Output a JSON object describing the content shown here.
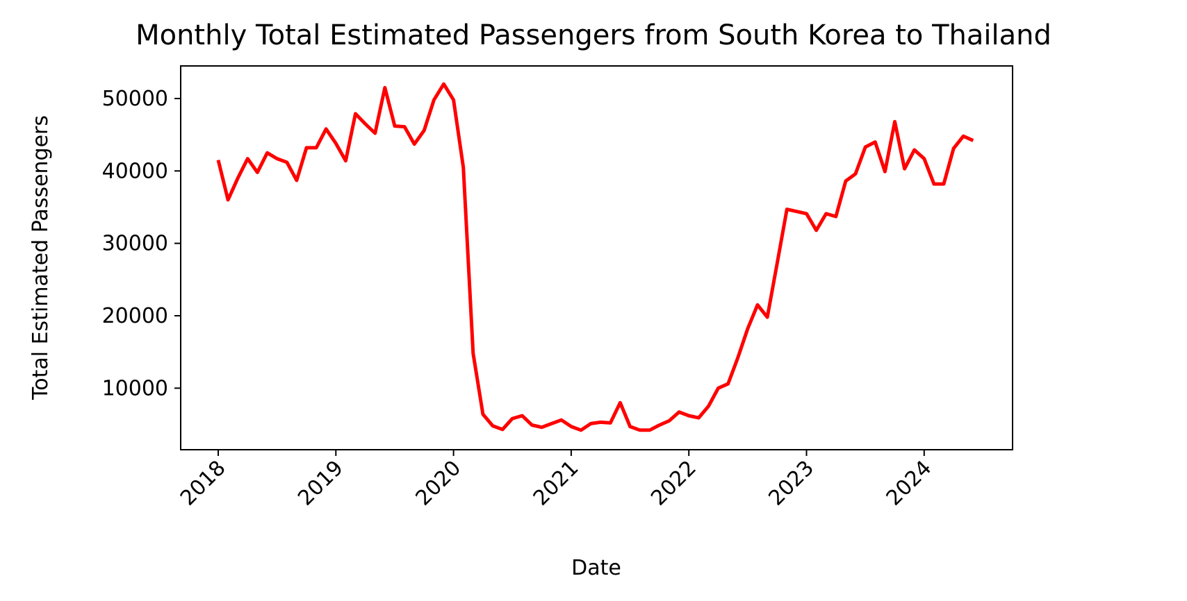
{
  "chart_data": {
    "type": "line",
    "title": "Monthly Total Estimated Passengers from South Korea to Thailand",
    "xlabel": "Date",
    "ylabel": "Total Estimated Passengers",
    "x_ticks": [
      "2018",
      "2019",
      "2020",
      "2021",
      "2022",
      "2023",
      "2024"
    ],
    "y_ticks": [
      "10000",
      "20000",
      "30000",
      "40000",
      "50000"
    ],
    "ylim": [
      1500,
      54500
    ],
    "grid": false,
    "color": "#ff0000",
    "series": [
      {
        "x": [
          "2018-01",
          "2018-02",
          "2018-03",
          "2018-04",
          "2018-05",
          "2018-06",
          "2018-07",
          "2018-08",
          "2018-09",
          "2018-10",
          "2018-11",
          "2018-12",
          "2019-01",
          "2019-02",
          "2019-03",
          "2019-04",
          "2019-05",
          "2019-06",
          "2019-07",
          "2019-08",
          "2019-09",
          "2019-10",
          "2019-11",
          "2019-12",
          "2020-01",
          "2020-02",
          "2020-03",
          "2020-04",
          "2020-05",
          "2020-06",
          "2020-07",
          "2020-08",
          "2020-09",
          "2020-10",
          "2020-11",
          "2020-12",
          "2021-01",
          "2021-02",
          "2021-03",
          "2021-04",
          "2021-05",
          "2021-06",
          "2021-07",
          "2021-08",
          "2021-09",
          "2021-10",
          "2021-11",
          "2021-12",
          "2022-01",
          "2022-02",
          "2022-03",
          "2022-04",
          "2022-05",
          "2022-06",
          "2022-07",
          "2022-08",
          "2022-09",
          "2022-10",
          "2022-11",
          "2022-12",
          "2023-01",
          "2023-02",
          "2023-03",
          "2023-04",
          "2023-05",
          "2023-06",
          "2023-07",
          "2023-08",
          "2023-09",
          "2023-10",
          "2023-11",
          "2023-12",
          "2024-01",
          "2024-02",
          "2024-03",
          "2024-04",
          "2024-05",
          "2024-06"
        ],
        "values": [
          41500,
          36000,
          39000,
          41700,
          39800,
          42500,
          41700,
          41200,
          38700,
          43200,
          43200,
          45800,
          43800,
          41400,
          47900,
          46500,
          45200,
          51500,
          46200,
          46100,
          43700,
          45600,
          49800,
          52000,
          49800,
          40500,
          14800,
          6400,
          4800,
          4300,
          5800,
          6200,
          4900,
          4600,
          5100,
          5600,
          4700,
          4200,
          5100,
          5300,
          5200,
          8000,
          4700,
          4200,
          4200,
          4900,
          5500,
          6700,
          6200,
          5900,
          7500,
          10000,
          10600,
          14200,
          18200,
          21500,
          19800,
          27200,
          34700,
          34400,
          34100,
          31800,
          34100,
          33700,
          38600,
          39600,
          43300,
          44000,
          39900,
          46800,
          40300,
          42900,
          41700,
          38200,
          38200,
          43100,
          44800,
          44200
        ]
      }
    ]
  }
}
